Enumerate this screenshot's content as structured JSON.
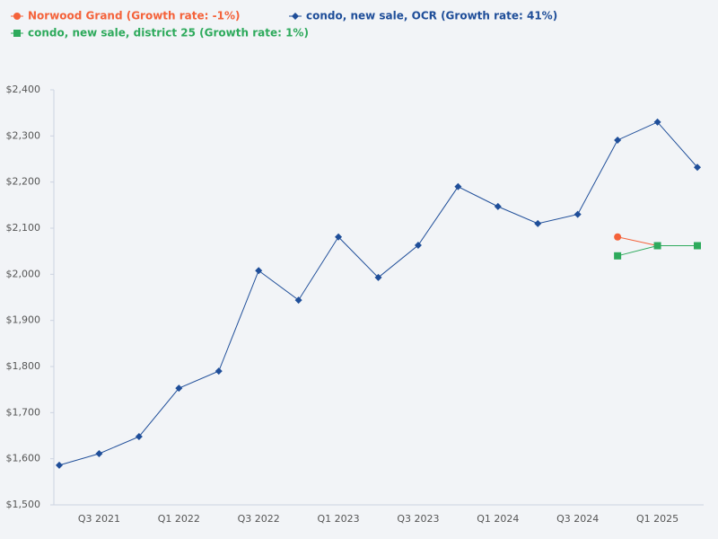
{
  "chart_data": {
    "type": "line",
    "categories": [
      null,
      "Q3 2021",
      null,
      "Q1 2022",
      null,
      "Q3 2022",
      null,
      "Q1 2023",
      null,
      "Q3 2023",
      null,
      "Q1 2024",
      null,
      "Q3 2024",
      null,
      "Q1 2025",
      null
    ],
    "series": [
      {
        "name": "Norwood Grand (Growth rate: -1%)",
        "color": "#f4623a",
        "marker": "circle",
        "values": [
          null,
          null,
          null,
          null,
          null,
          null,
          null,
          null,
          null,
          null,
          null,
          null,
          null,
          null,
          2081,
          2062,
          2062
        ]
      },
      {
        "name": "condo, new sale, OCR (Growth rate: 41%)",
        "color": "#1f4e99",
        "marker": "diamond",
        "values": [
          1586,
          1611,
          1648,
          1753,
          1790,
          2008,
          1944,
          2081,
          1993,
          2063,
          2190,
          2147,
          2110,
          2130,
          2291,
          2330,
          2232
        ]
      },
      {
        "name": "condo, new sale, district 25 (Growth rate: 1%)",
        "color": "#2eaa5c",
        "marker": "square",
        "values": [
          null,
          null,
          null,
          null,
          null,
          null,
          null,
          null,
          null,
          null,
          null,
          null,
          null,
          null,
          2040,
          2062,
          2062
        ]
      }
    ],
    "ylim": [
      1500,
      2400
    ],
    "yticks": [
      {
        "value": 1500,
        "label": "$1,500"
      },
      {
        "value": 1600,
        "label": "$1,600"
      },
      {
        "value": 1700,
        "label": "$1,700"
      },
      {
        "value": 1800,
        "label": "$1,800"
      },
      {
        "value": 1900,
        "label": "$1,900"
      },
      {
        "value": 2000,
        "label": "$2,000"
      },
      {
        "value": 2100,
        "label": "$2,100"
      },
      {
        "value": 2200,
        "label": "$2,200"
      },
      {
        "value": 2300,
        "label": "$2,300"
      },
      {
        "value": 2400,
        "label": "$2,400"
      }
    ],
    "grid": false
  }
}
